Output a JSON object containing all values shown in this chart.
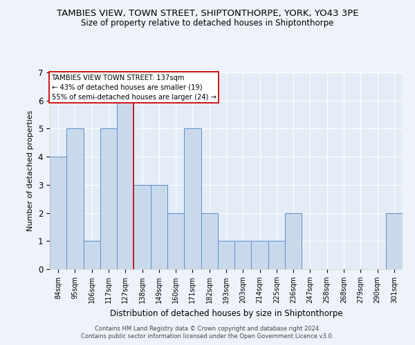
{
  "title": "TAMBIES VIEW, TOWN STREET, SHIPTONTHORPE, YORK, YO43 3PE",
  "subtitle": "Size of property relative to detached houses in Shiptonthorpe",
  "xlabel": "Distribution of detached houses by size in Shiptonthorpe",
  "ylabel": "Number of detached properties",
  "footer_line1": "Contains HM Land Registry data © Crown copyright and database right 2024.",
  "footer_line2": "Contains public sector information licensed under the Open Government Licence v3.0.",
  "categories": [
    "84sqm",
    "95sqm",
    "106sqm",
    "117sqm",
    "127sqm",
    "138sqm",
    "149sqm",
    "160sqm",
    "171sqm",
    "182sqm",
    "193sqm",
    "203sqm",
    "214sqm",
    "225sqm",
    "236sqm",
    "247sqm",
    "258sqm",
    "268sqm",
    "279sqm",
    "290sqm",
    "301sqm"
  ],
  "values": [
    4,
    5,
    1,
    5,
    6,
    3,
    3,
    2,
    5,
    2,
    1,
    1,
    1,
    1,
    2,
    0,
    0,
    0,
    0,
    0,
    2
  ],
  "bar_color": "#c9d9ec",
  "bar_edge_color": "#5b8fc9",
  "red_line_x": 4.5,
  "annotation_title": "TAMBIES VIEW TOWN STREET: 137sqm",
  "annotation_line1": "← 43% of detached houses are smaller (19)",
  "annotation_line2": "55% of semi-detached houses are larger (24) →",
  "ylim": [
    0,
    7
  ],
  "yticks": [
    0,
    1,
    2,
    3,
    4,
    5,
    6,
    7
  ],
  "background_color": "#eef2f9",
  "plot_background": "#e4ecf7",
  "grid_color": "#ffffff",
  "title_fontsize": 9.5,
  "subtitle_fontsize": 8.5,
  "annotation_box_color": "#ffffff",
  "annotation_box_edgecolor": "#cc0000"
}
